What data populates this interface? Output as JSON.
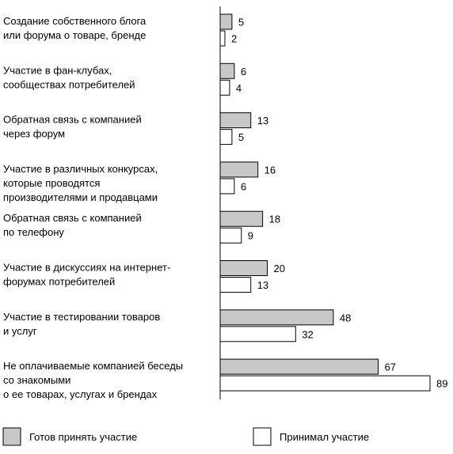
{
  "chart_data": {
    "type": "bar",
    "orientation": "horizontal",
    "categories": [
      [
        "Создание собственного блога",
        "или форума о товаре, бренде"
      ],
      [
        "Участие в фан-клубах,",
        "сообществах потребителей"
      ],
      [
        "Обратная связь с компанией",
        "через форум"
      ],
      [
        "Участие в различных конкурсах,",
        "которые проводятся",
        "производителями и продавцами"
      ],
      [
        "Обратная связь с компанией",
        "по телефону"
      ],
      [
        "Участие в дискуссиях на интернет-",
        "форумах потребителей"
      ],
      [
        "Участие в тестировании товаров",
        "и услуг"
      ],
      [
        "Не оплачиваемые компанией беседы",
        "со знакомыми",
        "о ее товарах, услугах и брендах"
      ]
    ],
    "series": [
      {
        "name": "Готов принять участие",
        "color": "#c8c8c8",
        "values": [
          5,
          6,
          13,
          16,
          18,
          20,
          48,
          67
        ]
      },
      {
        "name": "Принимал участие",
        "color": "#ffffff",
        "values": [
          2,
          4,
          5,
          6,
          9,
          13,
          32,
          89
        ]
      }
    ],
    "xlim": [
      0,
      89
    ],
    "legend_position": "bottom",
    "grid": false
  }
}
